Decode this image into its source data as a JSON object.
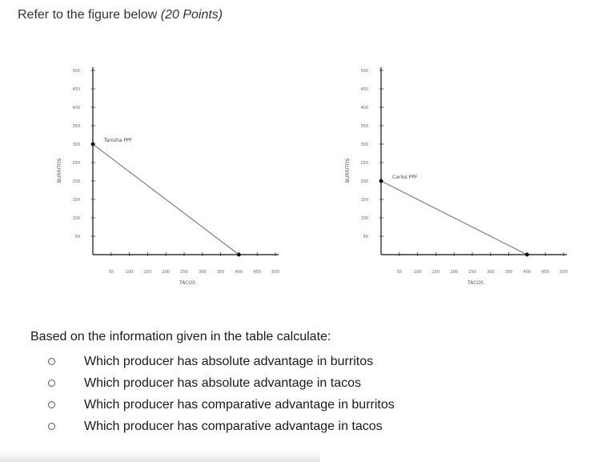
{
  "header": {
    "prefix": "Refer to the figure below ",
    "points": "(20 Points)"
  },
  "chart_data": [
    {
      "type": "line",
      "xlabel": "TACOS",
      "ylabel": "BURRITOS",
      "xlim": [
        0,
        500
      ],
      "ylim": [
        0,
        500
      ],
      "x_ticks": [
        "50",
        "100",
        "150",
        "200",
        "250",
        "300",
        "350",
        "400",
        "450",
        "500"
      ],
      "y_ticks": [
        "50",
        "100",
        "150",
        "200",
        "250",
        "300",
        "350",
        "400",
        "450",
        "500"
      ],
      "series": [
        {
          "name": "Tanisha PPF",
          "points": [
            [
              0,
              300
            ],
            [
              400,
              0
            ]
          ]
        }
      ],
      "annotation": {
        "text": "Tanisha PPF",
        "x": 0,
        "y": 300
      },
      "line_color": "#777777"
    },
    {
      "type": "line",
      "xlabel": "TACOS",
      "ylabel": "BURRITOS",
      "xlim": [
        0,
        500
      ],
      "ylim": [
        0,
        500
      ],
      "x_ticks": [
        "50",
        "100",
        "150",
        "200",
        "250",
        "300",
        "350",
        "400",
        "450",
        "500"
      ],
      "y_ticks": [
        "50",
        "100",
        "150",
        "200",
        "250",
        "300",
        "350",
        "400",
        "450",
        "500"
      ],
      "series": [
        {
          "name": "Carlos PPF",
          "points": [
            [
              0,
              200
            ],
            [
              400,
              0
            ]
          ]
        }
      ],
      "annotation": {
        "text": "Carlos PPF",
        "x": 0,
        "y": 200
      },
      "line_color": "#777777"
    }
  ],
  "question": {
    "intro": "Based on the information given in the table calculate:",
    "items": [
      "Which producer has absolute advantage in burritos",
      "Which producer has absolute advantage in tacos",
      "Which producer has comparative advantage in burritos",
      "Which producer has comparative advantage in tacos"
    ]
  }
}
